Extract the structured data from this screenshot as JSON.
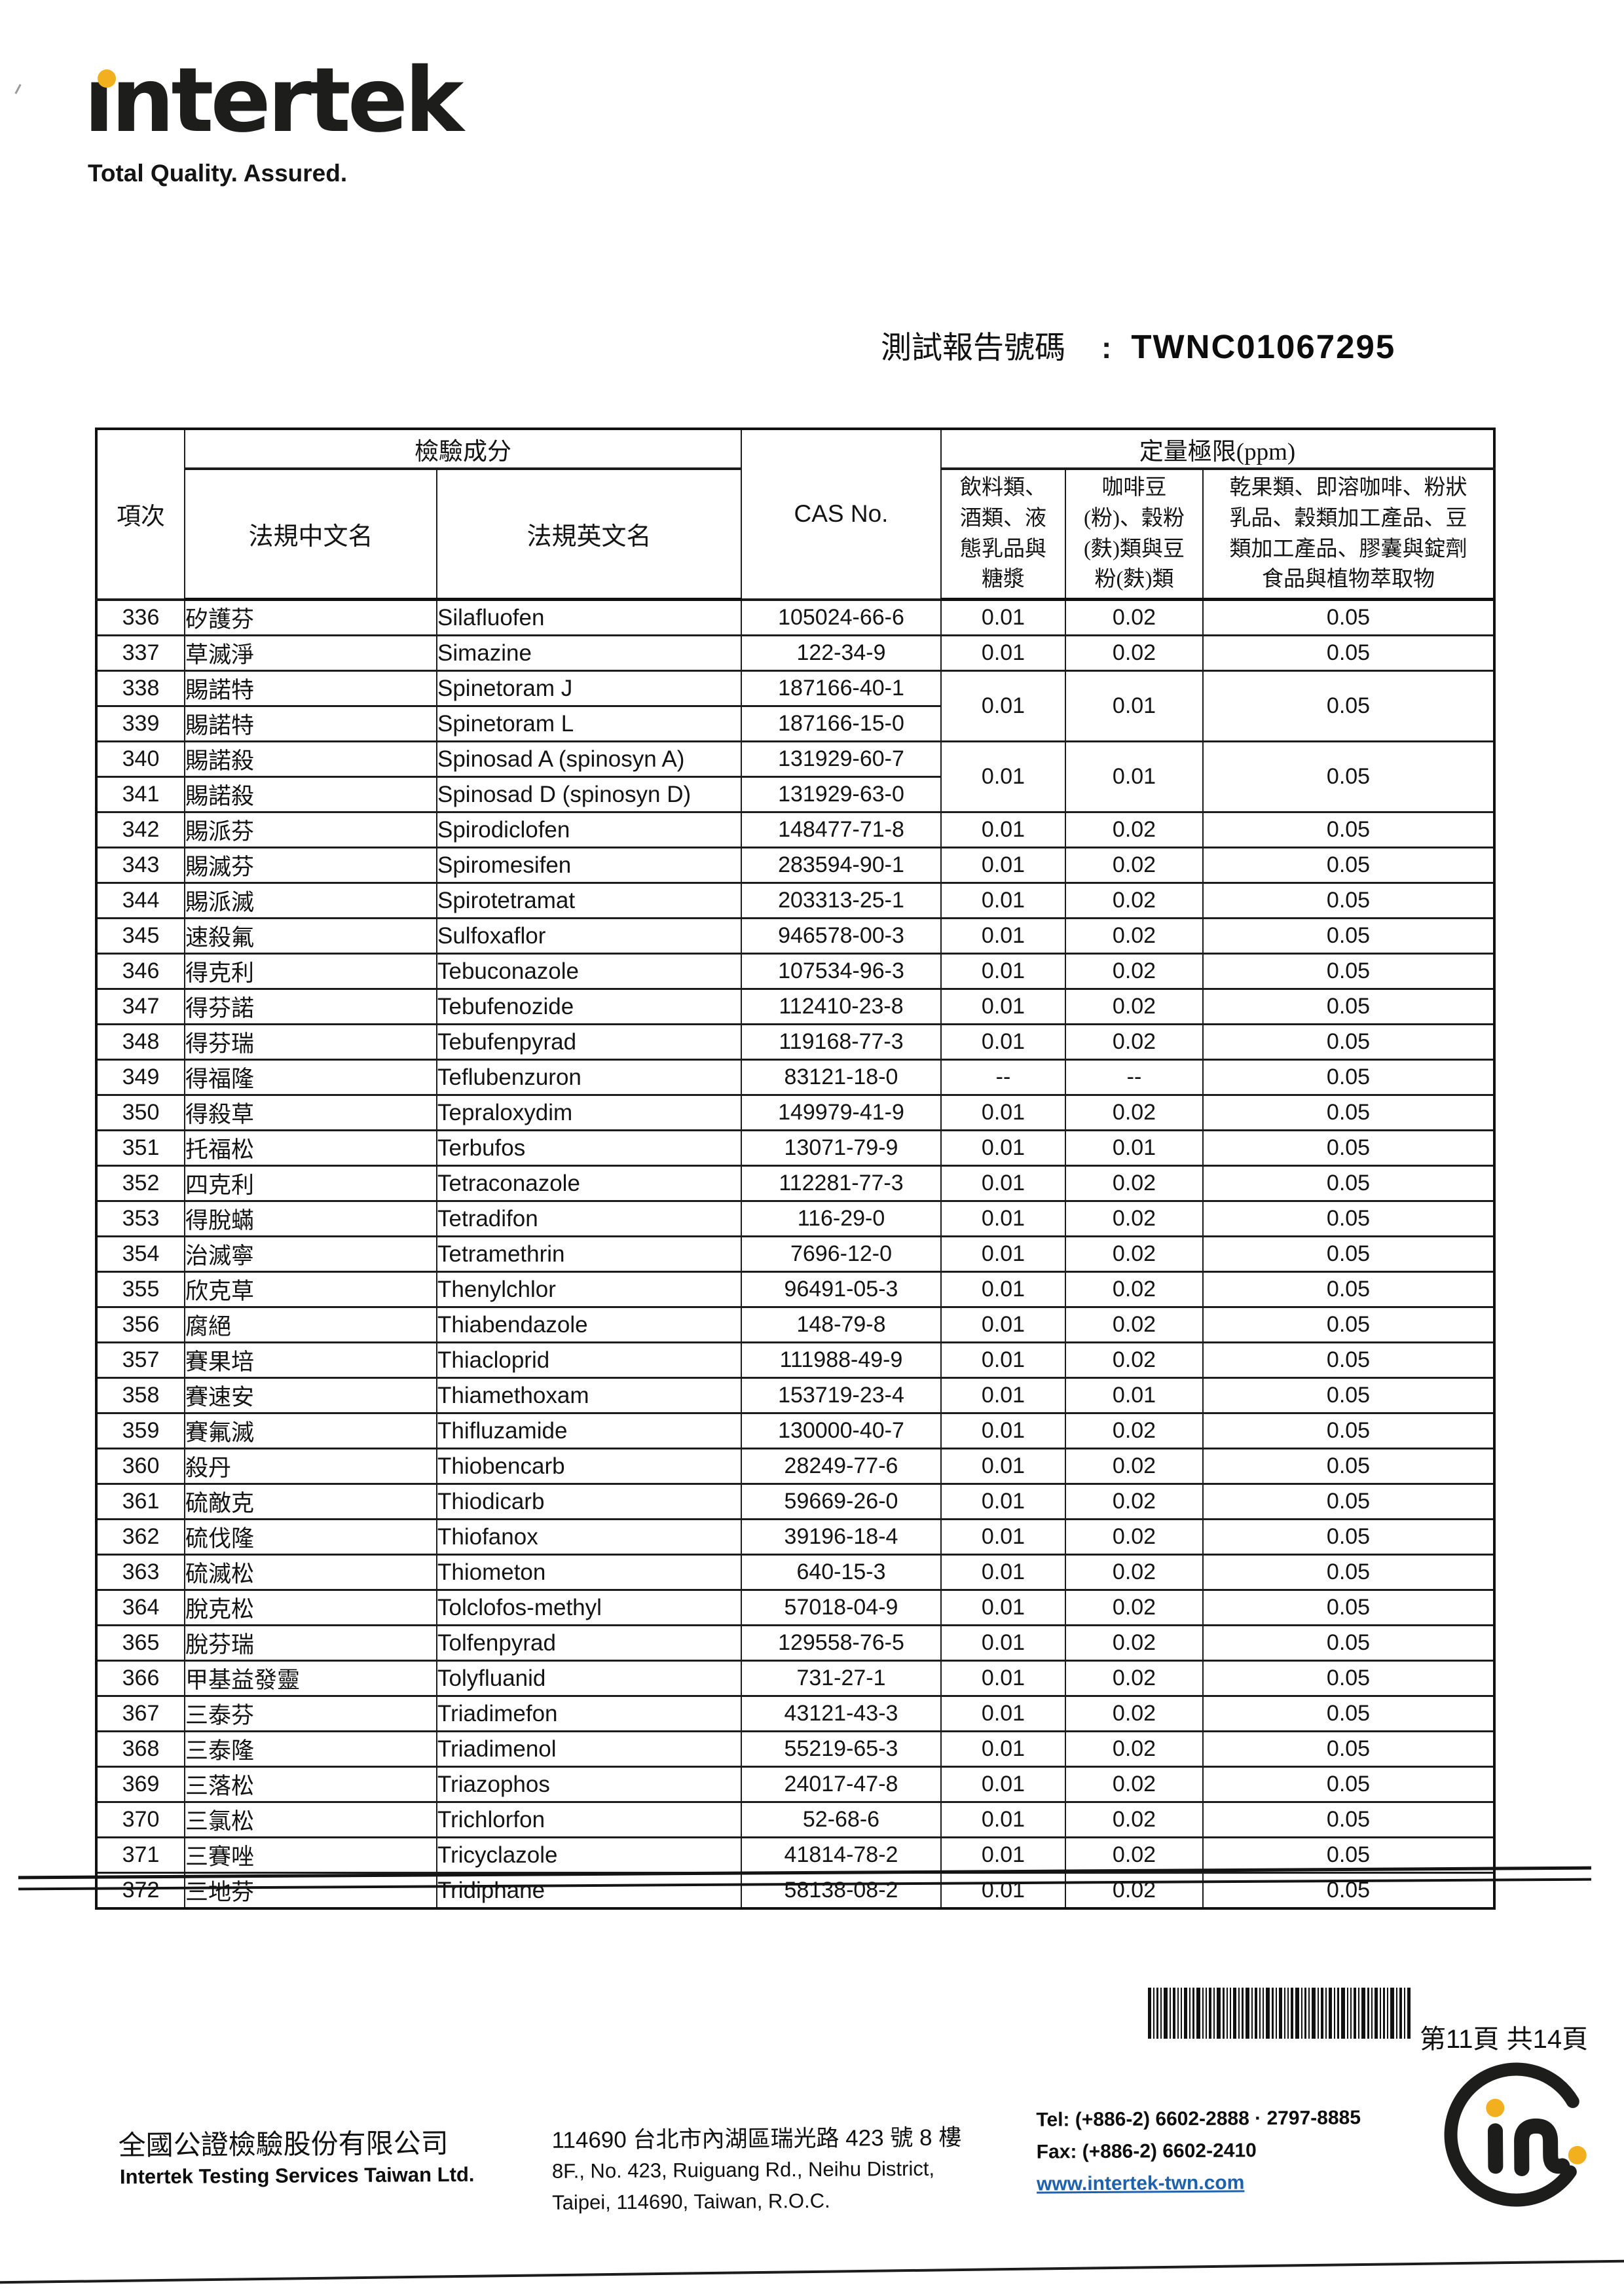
{
  "brand": {
    "logo_text": "intertek",
    "logo_text_display": "ıntertek",
    "tagline": "Total Quality. Assured."
  },
  "report": {
    "label": "測試報告號碼",
    "separator": ":",
    "number": "TWNC01067295"
  },
  "table": {
    "headers": {
      "item_no": "項次",
      "component_group": "檢驗成分",
      "cn_name": "法規中文名",
      "en_name": "法規英文名",
      "cas_no": "CAS No.",
      "loq_group": "定量極限(ppm)",
      "loq_col1": "飲料類、\n酒類、液\n態乳品與\n糖漿",
      "loq_col2": "咖啡豆\n(粉)、穀粉\n(麩)類與豆\n粉(麩)類",
      "loq_col3": "乾果類、即溶咖啡、粉狀\n乳品、穀類加工產品、豆\n類加工產品、膠囊與錠劑\n食品與植物萃取物"
    },
    "rows": [
      {
        "no": "336",
        "cn": "矽護芬",
        "en": "Silafluofen",
        "cas": "105024-66-6",
        "l1": "0.01",
        "l2": "0.02",
        "l3": "0.05"
      },
      {
        "no": "337",
        "cn": "草滅淨",
        "en": "Simazine",
        "cas": "122-34-9",
        "l1": "0.01",
        "l2": "0.02",
        "l3": "0.05"
      },
      {
        "no": "338",
        "cn": "賜諾特",
        "en": "Spinetoram J",
        "cas": "187166-40-1",
        "l1": "0.01",
        "l2": "0.01",
        "l3": "0.05",
        "span": 2
      },
      {
        "no": "339",
        "cn": "賜諾特",
        "en": "Spinetoram L",
        "cas": "187166-15-0",
        "span": 0
      },
      {
        "no": "340",
        "cn": "賜諾殺",
        "en": "Spinosad A (spinosyn A)",
        "cas": "131929-60-7",
        "l1": "0.01",
        "l2": "0.01",
        "l3": "0.05",
        "span": 2
      },
      {
        "no": "341",
        "cn": "賜諾殺",
        "en": "Spinosad D (spinosyn D)",
        "cas": "131929-63-0",
        "span": 0
      },
      {
        "no": "342",
        "cn": "賜派芬",
        "en": "Spirodiclofen",
        "cas": "148477-71-8",
        "l1": "0.01",
        "l2": "0.02",
        "l3": "0.05"
      },
      {
        "no": "343",
        "cn": "賜滅芬",
        "en": "Spiromesifen",
        "cas": "283594-90-1",
        "l1": "0.01",
        "l2": "0.02",
        "l3": "0.05"
      },
      {
        "no": "344",
        "cn": "賜派滅",
        "en": "Spirotetramat",
        "cas": "203313-25-1",
        "l1": "0.01",
        "l2": "0.02",
        "l3": "0.05"
      },
      {
        "no": "345",
        "cn": "速殺氟",
        "en": "Sulfoxaflor",
        "cas": "946578-00-3",
        "l1": "0.01",
        "l2": "0.02",
        "l3": "0.05"
      },
      {
        "no": "346",
        "cn": "得克利",
        "en": "Tebuconazole",
        "cas": "107534-96-3",
        "l1": "0.01",
        "l2": "0.02",
        "l3": "0.05"
      },
      {
        "no": "347",
        "cn": "得芬諾",
        "en": "Tebufenozide",
        "cas": "112410-23-8",
        "l1": "0.01",
        "l2": "0.02",
        "l3": "0.05"
      },
      {
        "no": "348",
        "cn": "得芬瑞",
        "en": "Tebufenpyrad",
        "cas": "119168-77-3",
        "l1": "0.01",
        "l2": "0.02",
        "l3": "0.05"
      },
      {
        "no": "349",
        "cn": "得福隆",
        "en": "Teflubenzuron",
        "cas": "83121-18-0",
        "l1": "--",
        "l2": "--",
        "l3": "0.05"
      },
      {
        "no": "350",
        "cn": "得殺草",
        "en": "Tepraloxydim",
        "cas": "149979-41-9",
        "l1": "0.01",
        "l2": "0.02",
        "l3": "0.05"
      },
      {
        "no": "351",
        "cn": "托福松",
        "en": "Terbufos",
        "cas": "13071-79-9",
        "l1": "0.01",
        "l2": "0.01",
        "l3": "0.05"
      },
      {
        "no": "352",
        "cn": "四克利",
        "en": "Tetraconazole",
        "cas": "112281-77-3",
        "l1": "0.01",
        "l2": "0.02",
        "l3": "0.05"
      },
      {
        "no": "353",
        "cn": "得脫蟎",
        "en": "Tetradifon",
        "cas": "116-29-0",
        "l1": "0.01",
        "l2": "0.02",
        "l3": "0.05"
      },
      {
        "no": "354",
        "cn": "治滅寧",
        "en": "Tetramethrin",
        "cas": "7696-12-0",
        "l1": "0.01",
        "l2": "0.02",
        "l3": "0.05"
      },
      {
        "no": "355",
        "cn": "欣克草",
        "en": "Thenylchlor",
        "cas": "96491-05-3",
        "l1": "0.01",
        "l2": "0.02",
        "l3": "0.05"
      },
      {
        "no": "356",
        "cn": "腐絕",
        "en": "Thiabendazole",
        "cas": "148-79-8",
        "l1": "0.01",
        "l2": "0.02",
        "l3": "0.05"
      },
      {
        "no": "357",
        "cn": "賽果培",
        "en": "Thiacloprid",
        "cas": "111988-49-9",
        "l1": "0.01",
        "l2": "0.02",
        "l3": "0.05"
      },
      {
        "no": "358",
        "cn": "賽速安",
        "en": "Thiamethoxam",
        "cas": "153719-23-4",
        "l1": "0.01",
        "l2": "0.01",
        "l3": "0.05"
      },
      {
        "no": "359",
        "cn": "賽氟滅",
        "en": "Thifluzamide",
        "cas": "130000-40-7",
        "l1": "0.01",
        "l2": "0.02",
        "l3": "0.05"
      },
      {
        "no": "360",
        "cn": "殺丹",
        "en": "Thiobencarb",
        "cas": "28249-77-6",
        "l1": "0.01",
        "l2": "0.02",
        "l3": "0.05"
      },
      {
        "no": "361",
        "cn": "硫敵克",
        "en": "Thiodicarb",
        "cas": "59669-26-0",
        "l1": "0.01",
        "l2": "0.02",
        "l3": "0.05"
      },
      {
        "no": "362",
        "cn": "硫伐隆",
        "en": "Thiofanox",
        "cas": "39196-18-4",
        "l1": "0.01",
        "l2": "0.02",
        "l3": "0.05"
      },
      {
        "no": "363",
        "cn": "硫滅松",
        "en": "Thiometon",
        "cas": "640-15-3",
        "l1": "0.01",
        "l2": "0.02",
        "l3": "0.05"
      },
      {
        "no": "364",
        "cn": "脫克松",
        "en": "Tolclofos-methyl",
        "cas": "57018-04-9",
        "l1": "0.01",
        "l2": "0.02",
        "l3": "0.05"
      },
      {
        "no": "365",
        "cn": "脫芬瑞",
        "en": "Tolfenpyrad",
        "cas": "129558-76-5",
        "l1": "0.01",
        "l2": "0.02",
        "l3": "0.05"
      },
      {
        "no": "366",
        "cn": "甲基益發靈",
        "en": "Tolyfluanid",
        "cas": "731-27-1",
        "l1": "0.01",
        "l2": "0.02",
        "l3": "0.05"
      },
      {
        "no": "367",
        "cn": "三泰芬",
        "en": "Triadimefon",
        "cas": "43121-43-3",
        "l1": "0.01",
        "l2": "0.02",
        "l3": "0.05"
      },
      {
        "no": "368",
        "cn": "三泰隆",
        "en": "Triadimenol",
        "cas": "55219-65-3",
        "l1": "0.01",
        "l2": "0.02",
        "l3": "0.05"
      },
      {
        "no": "369",
        "cn": "三落松",
        "en": "Triazophos",
        "cas": "24017-47-8",
        "l1": "0.01",
        "l2": "0.02",
        "l3": "0.05"
      },
      {
        "no": "370",
        "cn": "三氯松",
        "en": "Trichlorfon",
        "cas": "52-68-6",
        "l1": "0.01",
        "l2": "0.02",
        "l3": "0.05"
      },
      {
        "no": "371",
        "cn": "三賽唑",
        "en": "Tricyclazole",
        "cas": "41814-78-2",
        "l1": "0.01",
        "l2": "0.02",
        "l3": "0.05"
      },
      {
        "no": "372",
        "cn": "三地芬",
        "en": "Tridiphane",
        "cas": "58138-08-2",
        "l1": "0.01",
        "l2": "0.02",
        "l3": "0.05"
      }
    ]
  },
  "pagination": {
    "page_label": "第11頁 共14頁"
  },
  "footer": {
    "company_cn": "全國公證檢驗股份有限公司",
    "company_en": "Intertek Testing Services Taiwan Ltd.",
    "address_cn": "114690 台北市內湖區瑞光路 423 號 8 樓",
    "address_en1": "8F., No. 423, Ruiguang Rd., Neihu District,",
    "address_en2": "Taipei, 114690, Taiwan, R.O.C.",
    "tel": "Tel: (+886-2) 6602-2888 · 2797-8885",
    "fax": "Fax: (+886-2) 6602-2410",
    "website": "www.intertek-twn.com"
  },
  "colors": {
    "accent_yellow": "#f2b01e",
    "link_blue": "#1e62ad",
    "ink": "#161616"
  }
}
